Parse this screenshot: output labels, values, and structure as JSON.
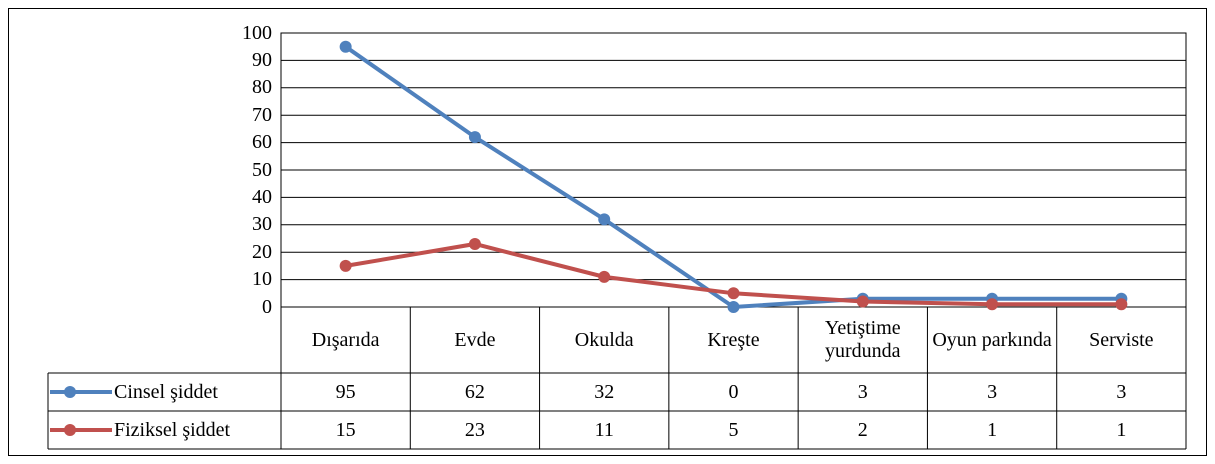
{
  "chart_data": {
    "type": "line",
    "categories": [
      "Dışarıda",
      "Evde",
      "Okulda",
      "Kreşte",
      "Yetiştime yurdunda",
      "Oyun parkında",
      "Serviste"
    ],
    "series": [
      {
        "name": "Cinsel şiddet",
        "color": "#4f81bd",
        "values": [
          95,
          62,
          32,
          0,
          3,
          3,
          3
        ]
      },
      {
        "name": "Fiziksel şiddet",
        "color": "#c0504d",
        "values": [
          15,
          23,
          11,
          5,
          2,
          1,
          1
        ]
      }
    ],
    "ylim": [
      0,
      100
    ],
    "yticks": [
      0,
      10,
      20,
      30,
      40,
      50,
      60,
      70,
      80,
      90,
      100
    ],
    "grid": true,
    "data_table": true
  }
}
